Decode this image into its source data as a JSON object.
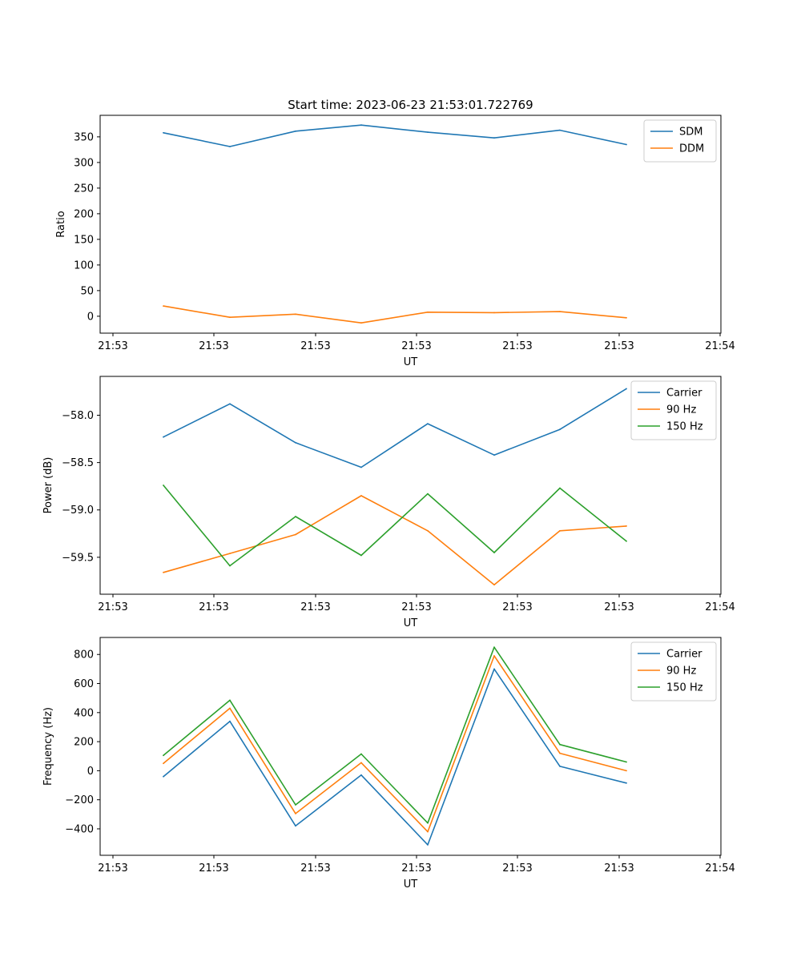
{
  "chart_data": [
    {
      "type": "line",
      "title": "Start time: 2023-06-23 21:53:01.722769",
      "xlabel": "UT",
      "ylabel": "Ratio",
      "x_ticks": [
        "21:53",
        "21:53",
        "21:53",
        "21:53",
        "21:53",
        "21:53",
        "21:54"
      ],
      "y_ticks": [
        "0",
        "50",
        "100",
        "150",
        "200",
        "250",
        "300",
        "350"
      ],
      "ylim": [
        -33,
        392
      ],
      "legend_position": "top-right",
      "grid": false,
      "series": [
        {
          "name": "SDM",
          "color": "#1f77b4",
          "values": [
            358,
            331,
            361,
            373,
            359,
            348,
            363,
            335
          ]
        },
        {
          "name": "DDM",
          "color": "#ff7f0e",
          "values": [
            20,
            -2,
            4,
            -13,
            8,
            7,
            9,
            -3
          ]
        }
      ]
    },
    {
      "type": "line",
      "title": "",
      "xlabel": "UT",
      "ylabel": "Power (dB)",
      "x_ticks": [
        "21:53",
        "21:53",
        "21:53",
        "21:53",
        "21:53",
        "21:53",
        "21:54"
      ],
      "y_ticks": [
        "−59.5",
        "−59.0",
        "−58.5",
        "−58.0"
      ],
      "ylim": [
        -59.89,
        -57.59
      ],
      "legend_position": "top-right",
      "grid": false,
      "series": [
        {
          "name": "Carrier",
          "color": "#1f77b4",
          "values": [
            -58.23,
            -57.88,
            -58.29,
            -58.55,
            -58.09,
            -58.42,
            -58.15,
            -57.72
          ]
        },
        {
          "name": "90 Hz",
          "color": "#ff7f0e",
          "values": [
            -59.66,
            -59.46,
            -59.26,
            -58.85,
            -59.22,
            -59.79,
            -59.22,
            -59.17
          ]
        },
        {
          "name": "150 Hz",
          "color": "#2ca02c",
          "values": [
            -58.74,
            -59.59,
            -59.07,
            -59.48,
            -58.83,
            -59.45,
            -58.77,
            -59.33
          ]
        }
      ]
    },
    {
      "type": "line",
      "title": "",
      "xlabel": "UT",
      "ylabel": "Frequency (Hz)",
      "x_ticks": [
        "21:53",
        "21:53",
        "21:53",
        "21:53",
        "21:53",
        "21:53",
        "21:54"
      ],
      "y_ticks": [
        "−400",
        "−200",
        "0",
        "200",
        "400",
        "600",
        "800"
      ],
      "ylim": [
        -582,
        917
      ],
      "legend_position": "top-right",
      "grid": false,
      "series": [
        {
          "name": "Carrier",
          "color": "#1f77b4",
          "values": [
            -40,
            340,
            -380,
            -30,
            -510,
            700,
            30,
            -85
          ]
        },
        {
          "name": "90 Hz",
          "color": "#ff7f0e",
          "values": [
            50,
            430,
            -295,
            55,
            -420,
            790,
            120,
            0
          ]
        },
        {
          "name": "150 Hz",
          "color": "#2ca02c",
          "values": [
            105,
            485,
            -235,
            115,
            -360,
            850,
            180,
            60
          ]
        }
      ]
    }
  ]
}
